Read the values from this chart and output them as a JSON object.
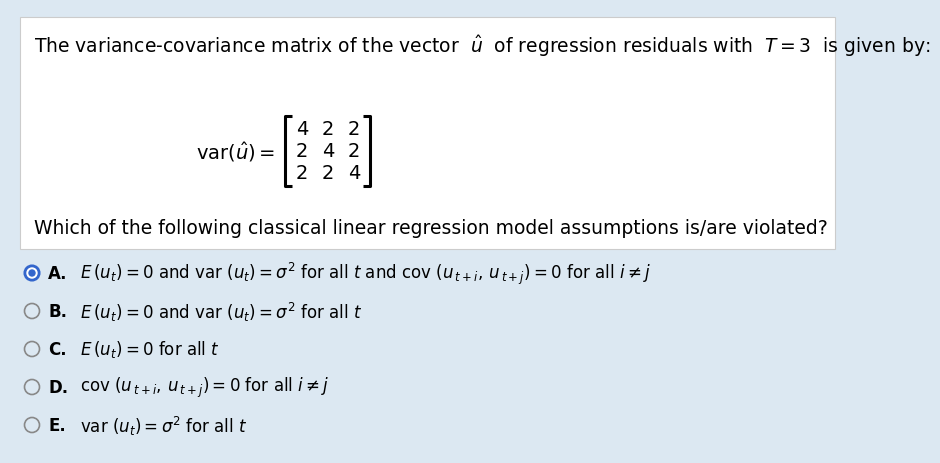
{
  "bg_color": "#dce8f2",
  "box_bg": "#ffffff",
  "box_border": "#cccccc",
  "title_line": "The variance-covariance matrix of the vector  $\\hat{u}$  of regression residuals with  $T = 3$  is given by:",
  "matrix_rows": [
    [
      4,
      2,
      2
    ],
    [
      2,
      4,
      2
    ],
    [
      2,
      2,
      4
    ]
  ],
  "question_text": "Which of the following classical linear regression model assumptions is/are violated?",
  "options": [
    {
      "label": "A.",
      "text": "$E\\,(u_t) = 0$ and var $(u_t) = \\sigma^2$ for all $t$ and cov $( u_{\\,t+i},\\, u_{\\,t+j}) = 0$ for all $i \\neq j$",
      "selected": true
    },
    {
      "label": "B.",
      "text": "$E\\,(u_t) = 0$ and var $(u_t) = \\sigma^2$ for all $t$",
      "selected": false
    },
    {
      "label": "C.",
      "text": "$E\\,(u_t) = 0$ for all $t$",
      "selected": false
    },
    {
      "label": "D.",
      "text": "cov $( u_{\\,t+i},\\, u_{\\,t+j}) = 0$ for all $i \\neq j$",
      "selected": false
    },
    {
      "label": "E.",
      "text": "var $(u_t) = \\sigma^2$ for all $t$",
      "selected": false
    }
  ],
  "radio_blue": "#3366cc",
  "radio_gray": "#888888",
  "font_size_title": 13.5,
  "font_size_question": 13.5,
  "font_size_options": 12,
  "font_size_label": 12,
  "font_size_matrix_label": 14,
  "font_size_matrix_nums": 14
}
